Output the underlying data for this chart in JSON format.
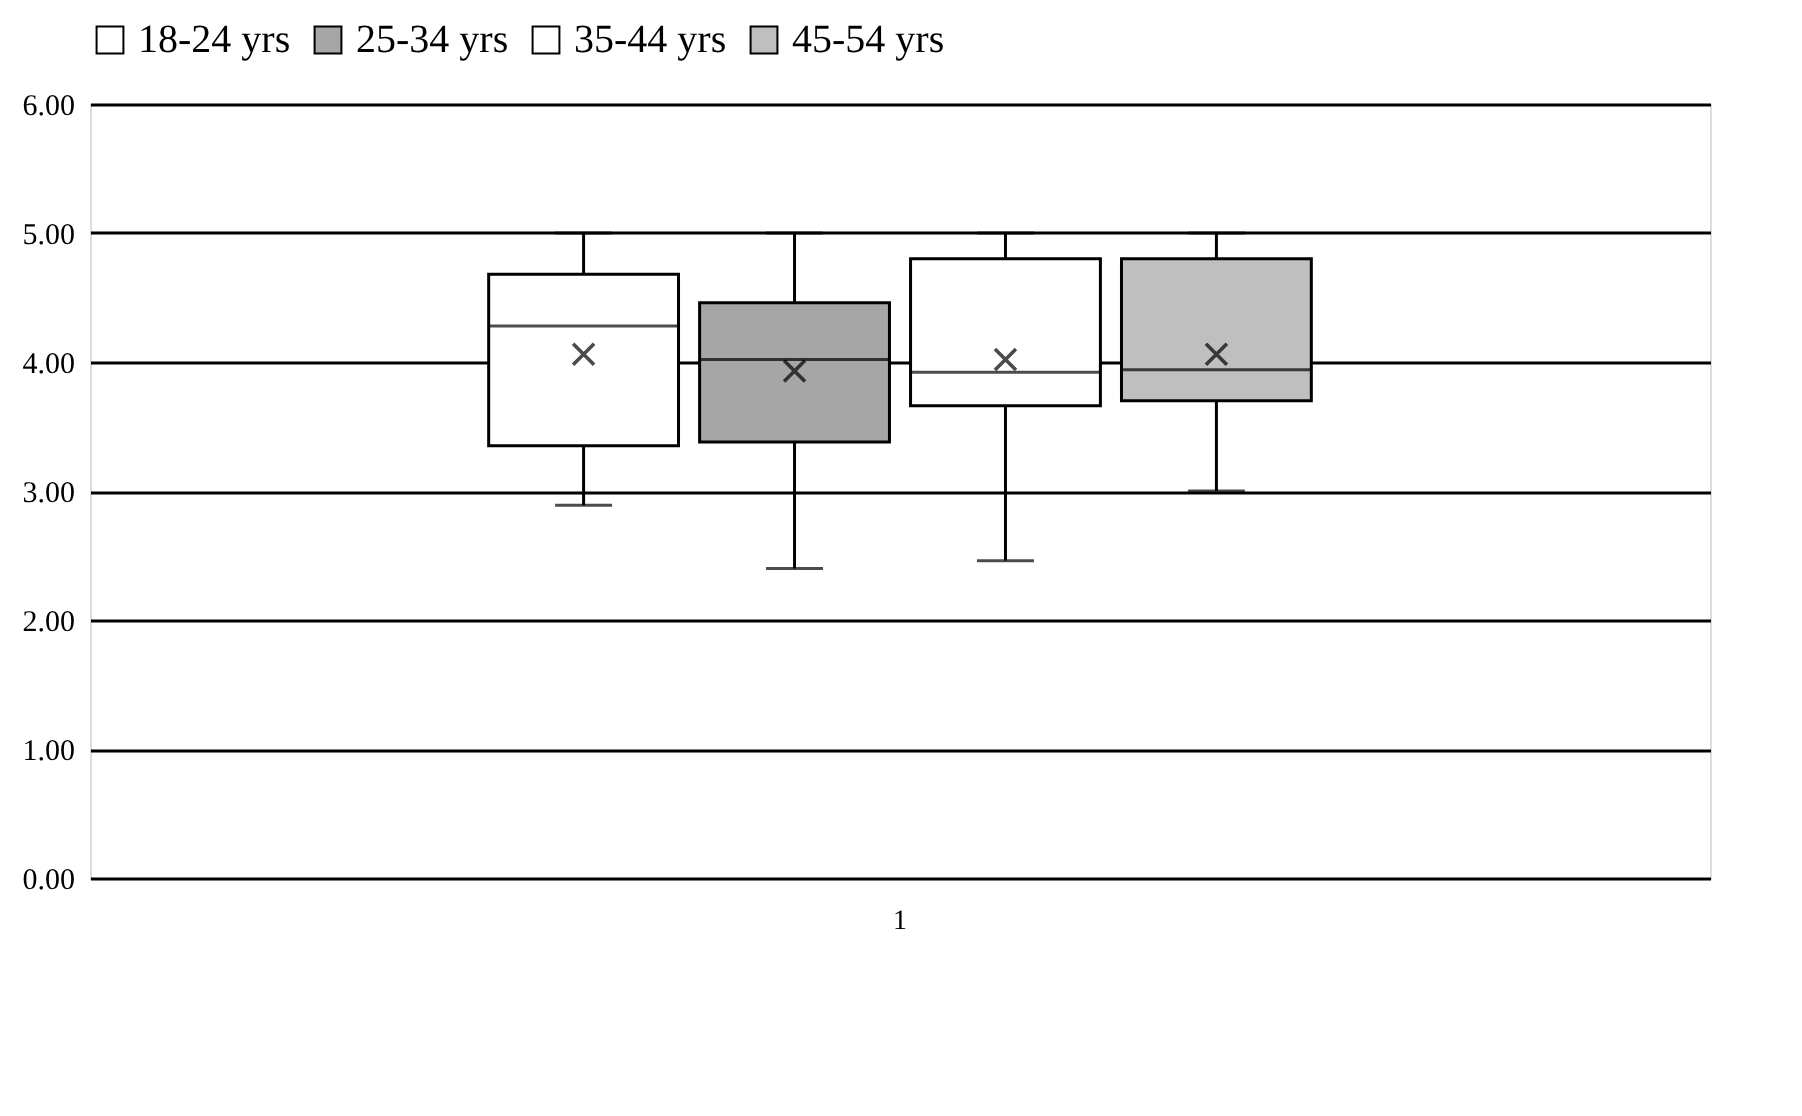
{
  "chart_data": {
    "type": "box",
    "categories": [
      "1"
    ],
    "series": [
      {
        "name": "18-24 yrs",
        "color": "#ffffff",
        "boxes": [
          {
            "low": 2.89,
            "q1": 3.35,
            "median": 4.28,
            "q3": 4.68,
            "high": 5.0,
            "mean": 4.06
          }
        ]
      },
      {
        "name": "25-34 yrs",
        "color": "#a6a6a6",
        "boxes": [
          {
            "low": 2.4,
            "q1": 3.38,
            "median": 4.02,
            "q3": 4.46,
            "high": 5.0,
            "mean": 3.93
          }
        ]
      },
      {
        "name": "35-44 yrs",
        "color": "#ffffff",
        "boxes": [
          {
            "low": 2.46,
            "q1": 3.66,
            "median": 3.92,
            "q3": 4.8,
            "high": 5.0,
            "mean": 4.02
          }
        ]
      },
      {
        "name": "45-54 yrs",
        "color": "#bfbfbf",
        "boxes": [
          {
            "low": 3.0,
            "q1": 3.7,
            "median": 3.94,
            "q3": 4.8,
            "high": 5.0,
            "mean": 4.06
          }
        ]
      }
    ],
    "ylim": [
      0,
      6
    ],
    "yticks": [
      {
        "value": 0,
        "label": "0.00"
      },
      {
        "value": 1,
        "label": "1.00"
      },
      {
        "value": 2,
        "label": "2.00"
      },
      {
        "value": 3,
        "label": "3.00"
      },
      {
        "value": 4,
        "label": "4.00"
      },
      {
        "value": 5,
        "label": "5.00"
      },
      {
        "value": 6,
        "label": "6.00"
      }
    ],
    "grid": "y",
    "legend": "top",
    "marker": "cross"
  }
}
